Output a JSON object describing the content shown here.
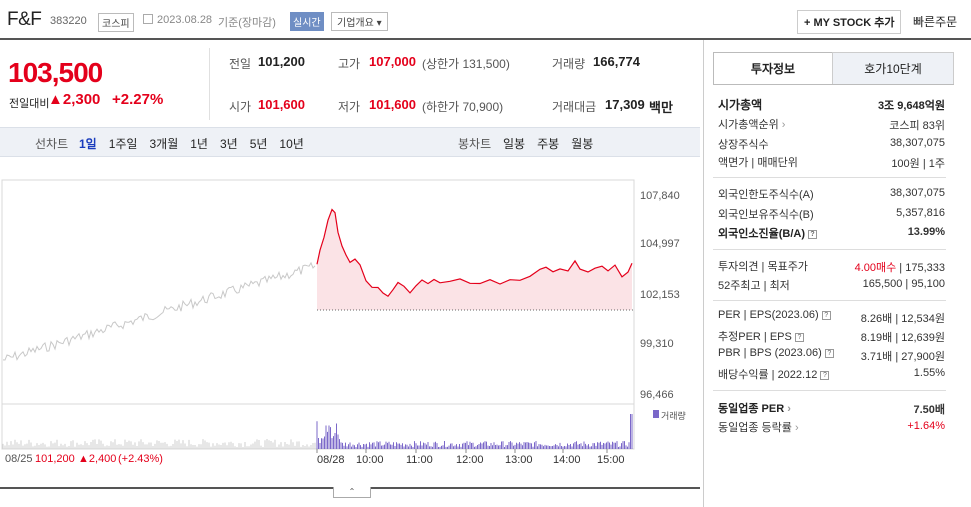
{
  "header": {
    "name": "F&F",
    "code": "383220",
    "market": "코스피",
    "date": "2023.08.28",
    "basis": "기준(장마감)",
    "realtime": "실시간",
    "overview": "기업개요",
    "mystock": "+ MY STOCK 추가",
    "quick": "빠른주문"
  },
  "price": {
    "current": "103,500",
    "diff_label": "전일대비",
    "diff_value": "2,300",
    "rate": "+2.27%"
  },
  "stats": {
    "prev_label": "전일",
    "prev": "101,200",
    "high_label": "고가",
    "high": "107,000",
    "upper": "(상한가 131,500)",
    "volume_label": "거래량",
    "volume": "166,774",
    "open_label": "시가",
    "open": "101,600",
    "low_label": "저가",
    "low": "101,600",
    "lower": "(하한가 70,900)",
    "amount_label": "거래대금",
    "amount": "17,309",
    "amount_unit": "백만"
  },
  "tabs": {
    "line_label": "선차트",
    "line": [
      "1일",
      "1주일",
      "3개월",
      "1년",
      "3년",
      "5년",
      "10년"
    ],
    "candle_label": "봉차트",
    "candle": [
      "일봉",
      "주봉",
      "월봉"
    ]
  },
  "axis": {
    "y": [
      "107,840",
      "104,997",
      "102,153",
      "99,310",
      "96,466"
    ],
    "x": [
      "08/28",
      "10:00",
      "11:00",
      "12:00",
      "13:00",
      "14:00",
      "15:00"
    ],
    "volume_legend": "거래량"
  },
  "prevday": {
    "date": "08/25",
    "price": "101,200",
    "change": "2,400",
    "rate": "(+2.43%)"
  },
  "colors": {
    "up": "#e4001b",
    "vol": "#7b68c9"
  },
  "chart_data": {
    "type": "line",
    "y_range": [
      96466,
      107840
    ],
    "prev_close": 101200
  },
  "right": {
    "tab_active": "투자정보",
    "tab_other": "호가10단계",
    "cap_label": "시가총액",
    "cap": "3조 9,648억원",
    "rank_label": "시가총액순위",
    "rank": "코스피 83위",
    "shares_label": "상장주식수",
    "shares": "38,307,075",
    "face_label": "액면가 | 매매단위",
    "face": "100원 | 1주",
    "fl_label": "외국인한도주식수(A)",
    "fl": "38,307,075",
    "fh_label": "외국인보유주식수(B)",
    "fh": "5,357,816",
    "fr_label": "외국인소진율(B/A)",
    "fr": "13.99%",
    "op_label": "투자의견 | 목표주가",
    "op1": "4.00매수",
    "op2": "175,333",
    "w52_label": "52주최고 | 최저",
    "w52": "165,500 | 95,100",
    "per_label": "PER | EPS(2023.06)",
    "per": "8.26배 | 12,534원",
    "eper_label": "추정PER | EPS",
    "eper": "8.19배 | 12,639원",
    "pbr_label": "PBR | BPS (2023.06)",
    "pbr": "3.71배 | 27,900원",
    "div_label": "배당수익률 | 2022.12",
    "div": "1.55%",
    "sper_label": "동일업종 PER",
    "sper": "7.50배",
    "srate_label": "동일업종 등락률",
    "srate": "+1.64%"
  }
}
